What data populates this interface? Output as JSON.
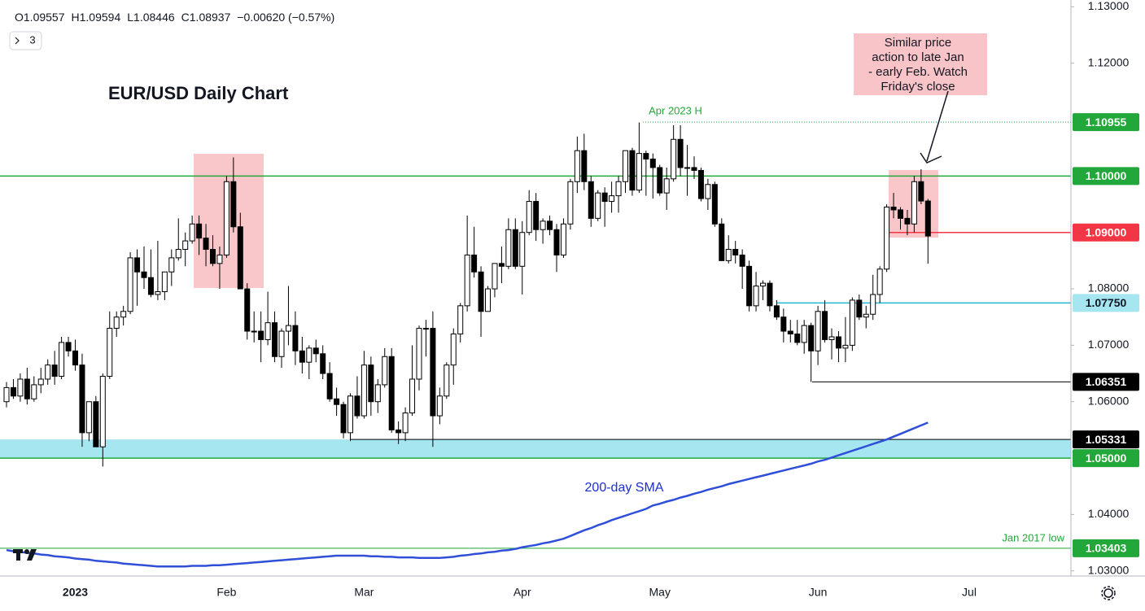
{
  "chart_data": {
    "type": "candlestick",
    "title": "EUR/USD Daily Chart",
    "ohlc_legend": [
      {
        "key": "O",
        "value": "1.09557"
      },
      {
        "key": "H",
        "value": "1.09594"
      },
      {
        "key": "L",
        "value": "1.08446"
      },
      {
        "key": "C",
        "value": "1.08937"
      }
    ],
    "change": "−0.00620 (−0.57%)",
    "indicator_count": "3",
    "annotation_lines": [
      "Similar price",
      "action to late Jan",
      "- early Feb. Watch",
      "Friday's close"
    ],
    "high_label": "Apr 2023 H",
    "sma_label": "200-day SMA",
    "low_label": "Jan 2017 low",
    "up_color": "#ffffff",
    "down_color": "#000000",
    "sma_color": "#2f4fd8",
    "ylim": [
      1.0291,
      1.1312
    ],
    "yticks": [
      {
        "value": 1.13,
        "label": "1.13000"
      },
      {
        "value": 1.12,
        "label": "1.12000"
      },
      {
        "value": 1.08,
        "label": "1.08000"
      },
      {
        "value": 1.07,
        "label": "1.07000"
      },
      {
        "value": 1.06,
        "label": "1.06000"
      },
      {
        "value": 1.04,
        "label": "1.04000"
      },
      {
        "value": 1.03,
        "label": "1.03000"
      }
    ],
    "levels": [
      {
        "value": 1.10955,
        "label": "1.10955",
        "color": "#22a83a",
        "text_color": "#ffffff"
      },
      {
        "value": 1.1,
        "label": "1.10000",
        "color": "#22a83a",
        "text_color": "#ffffff"
      },
      {
        "value": 1.09,
        "label": "1.09000",
        "color": "#f23645",
        "text_color": "#ffffff"
      },
      {
        "value": 1.0775,
        "label": "1.07750",
        "color": "#22b5d0",
        "text_color": "#131722"
      },
      {
        "value": 1.06351,
        "label": "1.06351",
        "color": "#000000",
        "text_color": "#ffffff"
      },
      {
        "value": 1.05331,
        "label": "1.05331",
        "color": "#000000",
        "text_color": "#ffffff"
      },
      {
        "value": 1.05,
        "label": "1.05000",
        "color": "#22a83a",
        "text_color": "#ffffff"
      },
      {
        "value": 1.03403,
        "label": "1.03403",
        "color": "#22a83a",
        "text_color": "#ffffff"
      }
    ],
    "categories": [
      null,
      null,
      null,
      null,
      null,
      null,
      null,
      null,
      null,
      null,
      "2023",
      null,
      null,
      null,
      null,
      null,
      null,
      null,
      null,
      null,
      null,
      null,
      null,
      null,
      null,
      null,
      null,
      null,
      null,
      null,
      null,
      null,
      "Feb",
      null,
      null,
      null,
      null,
      null,
      null,
      null,
      null,
      null,
      null,
      null,
      null,
      null,
      null,
      null,
      null,
      null,
      null,
      null,
      "Mar",
      null,
      null,
      null,
      null,
      null,
      null,
      null,
      null,
      null,
      null,
      null,
      null,
      null,
      null,
      null,
      null,
      null,
      null,
      null,
      null,
      null,
      null,
      "Apr",
      null,
      null,
      null,
      null,
      null,
      null,
      null,
      null,
      null,
      null,
      null,
      null,
      null,
      null,
      null,
      null,
      null,
      null,
      null,
      "May",
      null,
      null,
      null,
      null,
      null,
      null,
      null,
      null,
      null,
      null,
      null,
      null,
      null,
      null,
      null,
      null,
      null,
      null,
      null,
      null,
      null,
      null,
      "Jun",
      null,
      null,
      null,
      null,
      null,
      null,
      null,
      null,
      null,
      null,
      null,
      null,
      null,
      null,
      null,
      null,
      null,
      null,
      null,
      null,
      null,
      "Jul"
    ],
    "ohlc": [
      [
        1.06,
        1.0635,
        1.059,
        1.0625
      ],
      [
        1.0625,
        1.064,
        1.0605,
        1.061
      ],
      [
        1.061,
        1.065,
        1.06,
        1.064
      ],
      [
        1.064,
        1.066,
        1.0595,
        1.0605
      ],
      [
        1.0605,
        1.0645,
        1.06,
        1.063
      ],
      [
        1.063,
        1.066,
        1.0615,
        1.064
      ],
      [
        1.064,
        1.0675,
        1.063,
        1.0665
      ],
      [
        1.0665,
        1.069,
        1.063,
        1.0645
      ],
      [
        1.0645,
        1.0715,
        1.064,
        1.0705
      ],
      [
        1.0705,
        1.0715,
        1.068,
        1.069
      ],
      [
        1.069,
        1.071,
        1.0655,
        1.0665
      ],
      [
        1.0665,
        1.0685,
        1.052,
        1.0545
      ],
      [
        1.0545,
        1.06,
        1.053,
        1.06
      ],
      [
        1.06,
        1.061,
        1.052,
        1.052
      ],
      [
        1.052,
        1.065,
        1.0485,
        1.0645
      ],
      [
        1.0645,
        1.076,
        1.064,
        1.073
      ],
      [
        1.073,
        1.076,
        1.0715,
        1.075
      ],
      [
        1.075,
        1.077,
        1.0735,
        1.076
      ],
      [
        1.076,
        1.0865,
        1.0755,
        1.0855
      ],
      [
        1.0855,
        1.087,
        1.077,
        1.083
      ],
      [
        1.083,
        1.0875,
        1.08,
        1.082
      ],
      [
        1.082,
        1.087,
        1.0785,
        1.079
      ],
      [
        1.079,
        1.0885,
        1.078,
        1.0795
      ],
      [
        1.0795,
        1.083,
        1.078,
        1.083
      ],
      [
        1.083,
        1.087,
        1.0805,
        1.0855
      ],
      [
        1.0855,
        1.0925,
        1.085,
        1.087
      ],
      [
        1.087,
        1.09,
        1.084,
        1.0885
      ],
      [
        1.0885,
        1.093,
        1.088,
        1.0915
      ],
      [
        1.0915,
        1.093,
        1.086,
        1.089
      ],
      [
        1.089,
        1.0915,
        1.084,
        1.087
      ],
      [
        1.087,
        1.0895,
        1.084,
        1.0845
      ],
      [
        1.0845,
        1.0875,
        1.08,
        1.086
      ],
      [
        1.086,
        1.1,
        1.0855,
        1.099
      ],
      [
        1.099,
        1.1033,
        1.09,
        1.091
      ],
      [
        1.091,
        1.0935,
        1.08,
        1.08
      ],
      [
        1.08,
        1.081,
        1.071,
        1.0725
      ],
      [
        1.0725,
        1.076,
        1.0705,
        1.0725
      ],
      [
        1.0725,
        1.076,
        1.067,
        1.071
      ],
      [
        1.071,
        1.0795,
        1.07,
        1.074
      ],
      [
        1.074,
        1.076,
        1.067,
        1.068
      ],
      [
        1.068,
        1.073,
        1.066,
        1.0725
      ],
      [
        1.0725,
        1.0805,
        1.07,
        1.0735
      ],
      [
        1.0735,
        1.076,
        1.0665,
        1.069
      ],
      [
        1.069,
        1.0715,
        1.065,
        1.067
      ],
      [
        1.067,
        1.07,
        1.064,
        1.0695
      ],
      [
        1.0695,
        1.071,
        1.067,
        1.0685
      ],
      [
        1.0685,
        1.07,
        1.064,
        1.065
      ],
      [
        1.065,
        1.067,
        1.06,
        1.0605
      ],
      [
        1.0605,
        1.0625,
        1.0575,
        1.0595
      ],
      [
        1.0595,
        1.06,
        1.0535,
        1.0545
      ],
      [
        1.0545,
        1.0615,
        1.053,
        1.061
      ],
      [
        1.061,
        1.0645,
        1.057,
        1.0575
      ],
      [
        1.0575,
        1.069,
        1.057,
        1.0665
      ],
      [
        1.0665,
        1.068,
        1.0575,
        1.06
      ],
      [
        1.06,
        1.064,
        1.058,
        1.063
      ],
      [
        1.063,
        1.0695,
        1.0625,
        1.068
      ],
      [
        1.068,
        1.0695,
        1.0545,
        1.055
      ],
      [
        1.055,
        1.0565,
        1.0525,
        1.0545
      ],
      [
        1.0545,
        1.059,
        1.053,
        1.058
      ],
      [
        1.058,
        1.07,
        1.0575,
        1.064
      ],
      [
        1.064,
        1.0735,
        1.062,
        1.073
      ],
      [
        1.073,
        1.0745,
        1.068,
        1.073
      ],
      [
        1.073,
        1.076,
        1.052,
        1.0575
      ],
      [
        1.0575,
        1.0625,
        1.056,
        1.061
      ],
      [
        1.061,
        1.067,
        1.0605,
        1.0665
      ],
      [
        1.0665,
        1.073,
        1.063,
        1.072
      ],
      [
        1.072,
        1.0775,
        1.0705,
        1.077
      ],
      [
        1.077,
        1.093,
        1.076,
        1.086
      ],
      [
        1.086,
        1.091,
        1.082,
        1.083
      ],
      [
        1.083,
        1.084,
        1.0715,
        1.076
      ],
      [
        1.076,
        1.0805,
        1.076,
        1.08
      ],
      [
        1.08,
        1.0845,
        1.0785,
        1.0845
      ],
      [
        1.0845,
        1.0875,
        1.081,
        1.084
      ],
      [
        1.084,
        1.0925,
        1.0835,
        1.0905
      ],
      [
        1.0905,
        1.0925,
        1.0835,
        1.084
      ],
      [
        1.084,
        1.092,
        1.079,
        1.09
      ],
      [
        1.09,
        1.0975,
        1.0895,
        1.0955
      ],
      [
        1.0955,
        1.097,
        1.0885,
        1.0905
      ],
      [
        1.0905,
        1.0925,
        1.088,
        1.092
      ],
      [
        1.092,
        1.093,
        1.0895,
        1.0905
      ],
      [
        1.0905,
        1.0915,
        1.083,
        1.086
      ],
      [
        1.086,
        1.0925,
        1.0855,
        1.0915
      ],
      [
        1.0915,
        1.0995,
        1.0905,
        1.099
      ],
      [
        1.099,
        1.107,
        1.097,
        1.1045
      ],
      [
        1.1045,
        1.1075,
        1.0975,
        1.099
      ],
      [
        1.099,
        1.1,
        1.091,
        1.0925
      ],
      [
        1.0925,
        1.0975,
        1.092,
        1.097
      ],
      [
        1.097,
        1.098,
        1.091,
        1.0955
      ],
      [
        1.0955,
        1.099,
        1.0935,
        1.0965
      ],
      [
        1.0965,
        1.1,
        1.0935,
        1.099
      ],
      [
        1.099,
        1.1045,
        1.097,
        1.1045
      ],
      [
        1.1045,
        1.105,
        1.0965,
        1.0975
      ],
      [
        1.0975,
        1.1095,
        1.097,
        1.104
      ],
      [
        1.104,
        1.1045,
        1.0965,
        1.103
      ],
      [
        1.103,
        1.104,
        1.096,
        1.1015
      ],
      [
        1.1015,
        1.102,
        1.0965,
        1.097
      ],
      [
        1.097,
        1.1015,
        1.094,
        1.0995
      ],
      [
        1.0995,
        1.109,
        1.099,
        1.1065
      ],
      [
        1.1065,
        1.109,
        1.1,
        1.1015
      ],
      [
        1.1015,
        1.1055,
        1.0965,
        1.1015
      ],
      [
        1.1015,
        1.1035,
        1.0995,
        1.101
      ],
      [
        1.101,
        1.1015,
        1.0955,
        1.096
      ],
      [
        1.096,
        1.0995,
        1.094,
        1.0985
      ],
      [
        1.0985,
        1.099,
        1.091,
        1.0915
      ],
      [
        1.0915,
        1.0925,
        1.085,
        1.085
      ],
      [
        1.085,
        1.0895,
        1.0845,
        1.087
      ],
      [
        1.087,
        1.0885,
        1.0845,
        1.086
      ],
      [
        1.086,
        1.087,
        1.08,
        1.084
      ],
      [
        1.084,
        1.085,
        1.076,
        1.077
      ],
      [
        1.077,
        1.083,
        1.076,
        1.0805
      ],
      [
        1.0805,
        1.0815,
        1.078,
        1.081
      ],
      [
        1.081,
        1.0815,
        1.076,
        1.077
      ],
      [
        1.077,
        1.078,
        1.0745,
        1.075
      ],
      [
        1.075,
        1.0765,
        1.0705,
        1.0725
      ],
      [
        1.0725,
        1.0745,
        1.0705,
        1.072
      ],
      [
        1.072,
        1.0745,
        1.07,
        1.0705
      ],
      [
        1.0705,
        1.0745,
        1.0685,
        1.0735
      ],
      [
        1.0735,
        1.074,
        1.0635,
        1.069
      ],
      [
        1.069,
        1.077,
        1.0665,
        1.076
      ],
      [
        1.076,
        1.078,
        1.0705,
        1.071
      ],
      [
        1.071,
        1.073,
        1.0675,
        1.0715
      ],
      [
        1.0715,
        1.0725,
        1.067,
        1.0695
      ],
      [
        1.0695,
        1.075,
        1.067,
        1.07
      ],
      [
        1.07,
        1.0785,
        1.069,
        1.078
      ],
      [
        1.078,
        1.079,
        1.0745,
        1.075
      ],
      [
        1.075,
        1.077,
        1.073,
        1.0755
      ],
      [
        1.0755,
        1.0825,
        1.0745,
        1.079
      ],
      [
        1.079,
        1.084,
        1.0775,
        1.0835
      ],
      [
        1.0835,
        1.095,
        1.083,
        1.0945
      ],
      [
        1.0945,
        1.097,
        1.0925,
        1.094
      ],
      [
        1.094,
        1.0945,
        1.0905,
        1.0925
      ],
      [
        1.0925,
        1.094,
        1.0895,
        1.0915
      ],
      [
        1.0915,
        1.1,
        1.09,
        1.099
      ],
      [
        1.099,
        1.1012,
        1.095,
        1.09557
      ],
      [
        1.09557,
        1.09594,
        1.08446,
        1.08937
      ],
      null,
      null,
      null,
      null,
      null,
      null
    ],
    "sma": {
      "name": "200-day SMA",
      "values": [
        1.0337,
        1.0335,
        1.0334,
        1.0332,
        1.0331,
        1.0329,
        1.0328,
        1.0326,
        1.0325,
        1.0324,
        1.0322,
        1.0321,
        1.032,
        1.0318,
        1.0317,
        1.0316,
        1.0315,
        1.0313,
        1.0312,
        1.0311,
        1.031,
        1.0309,
        1.0308,
        1.0308,
        1.0308,
        1.0308,
        1.0308,
        1.0309,
        1.0309,
        1.0309,
        1.031,
        1.031,
        1.0311,
        1.0312,
        1.0313,
        1.0314,
        1.0315,
        1.0316,
        1.0317,
        1.0318,
        1.0319,
        1.032,
        1.0321,
        1.0322,
        1.0323,
        1.0324,
        1.0325,
        1.0326,
        1.0327,
        1.0327,
        1.0327,
        1.0327,
        1.0327,
        1.0326,
        1.0326,
        1.0325,
        1.0325,
        1.0324,
        1.0324,
        1.0324,
        1.0323,
        1.0323,
        1.0323,
        1.0323,
        1.0324,
        1.0325,
        1.0327,
        1.0328,
        1.033,
        1.0331,
        1.0333,
        1.0334,
        1.0336,
        1.0337,
        1.0339,
        1.0342,
        1.0344,
        1.0346,
        1.0349,
        1.0351,
        1.0354,
        1.0357,
        1.0362,
        1.0367,
        1.0372,
        1.0376,
        1.0381,
        1.0385,
        1.039,
        1.0394,
        1.0398,
        1.0402,
        1.0406,
        1.041,
        1.0416,
        1.0419,
        1.0423,
        1.0426,
        1.043,
        1.0433,
        1.0437,
        1.044,
        1.0444,
        1.0447,
        1.045,
        1.0454,
        1.0457,
        1.046,
        1.0463,
        1.0466,
        1.0469,
        1.0472,
        1.0475,
        1.0478,
        1.0481,
        1.0484,
        1.0487,
        1.049,
        1.0494,
        1.0497,
        1.0501,
        1.0505,
        1.0509,
        1.0513,
        1.0517,
        1.0521,
        1.0525,
        1.0529,
        1.0533,
        1.0538,
        1.0543,
        1.0548,
        1.0553,
        1.0558,
        1.0563,
        null,
        null,
        null,
        null,
        null,
        null
      ]
    }
  }
}
